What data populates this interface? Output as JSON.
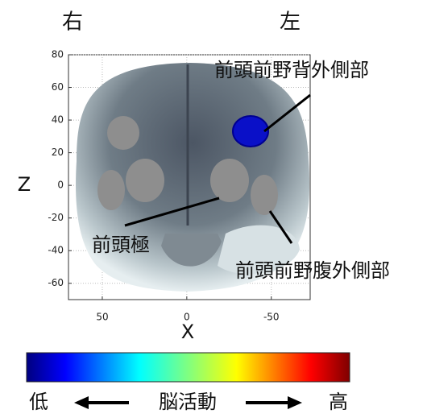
{
  "header": {
    "right": "右",
    "left": "左"
  },
  "axes": {
    "x_label": "X",
    "z_label": "Z",
    "xlim": [
      70,
      -73
    ],
    "ylim": [
      -70,
      80
    ],
    "xticks": [
      50,
      0,
      -50
    ],
    "yticks": [
      80,
      60,
      40,
      20,
      0,
      -20,
      -40,
      -60
    ]
  },
  "annotations": {
    "dlpfc": "前頭前野背外側部",
    "frontal_pole": "前頭極",
    "vlpfc": "前頭前野腹外側部"
  },
  "colorbar": {
    "low": "低",
    "title": "脳活動",
    "high": "高"
  }
}
